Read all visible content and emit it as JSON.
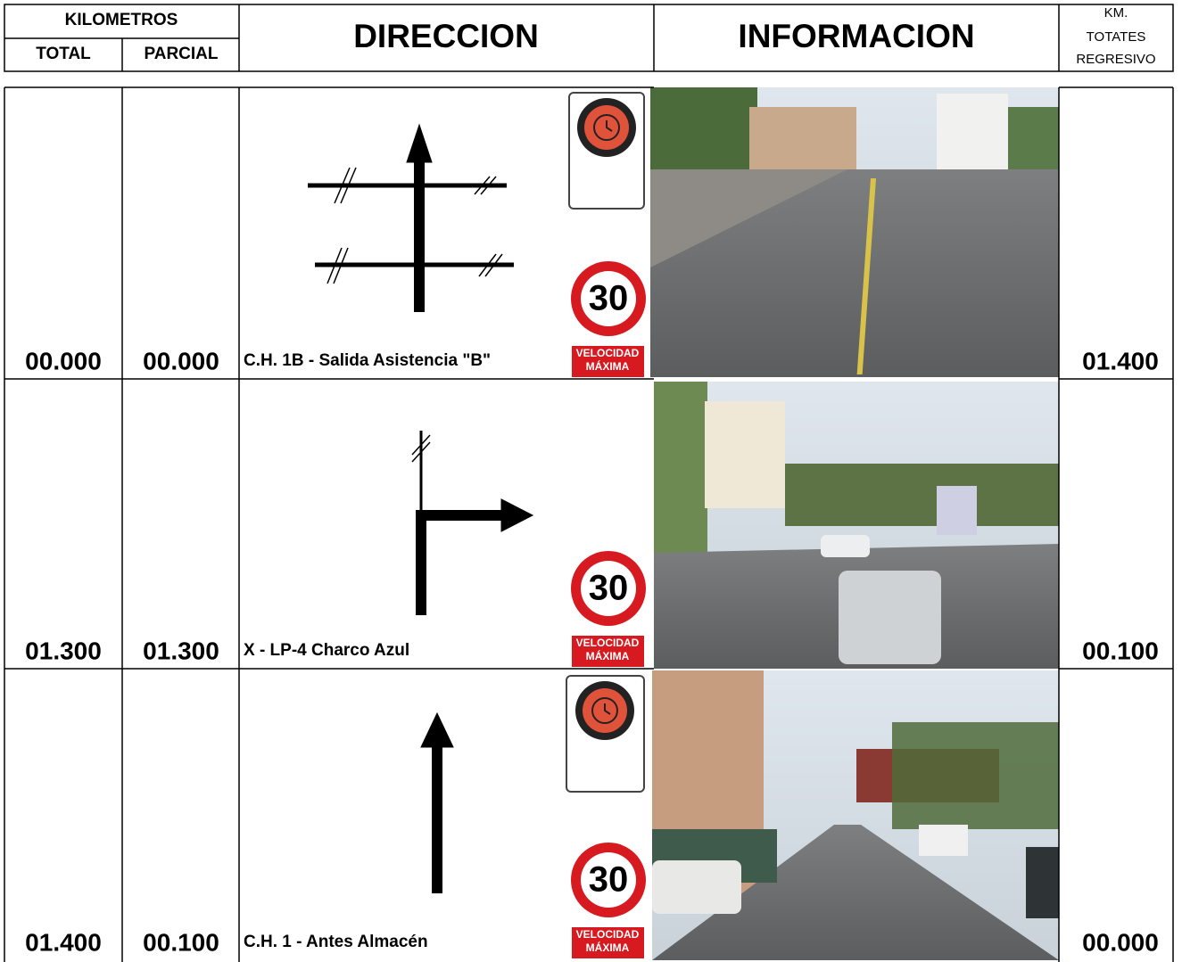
{
  "header": {
    "kilometros": "KILOMETROS",
    "total": "TOTAL",
    "parcial": "PARCIAL",
    "direccion": "DIRECCION",
    "informacion": "INFORMACION",
    "km_regresivo": [
      "KM.",
      "TOTATES",
      "REGRESIVO"
    ]
  },
  "rows": [
    {
      "total": "00.000",
      "parcial": "00.000",
      "description": "C.H. 1B - Salida Asistencia \"B\"",
      "km_regresivo": "01.400",
      "speed_limit": "30",
      "sign_line1": "VELOCIDAD",
      "sign_line2": "MÁXIMA"
    },
    {
      "total": "01.300",
      "parcial": "01.300",
      "description": "X - LP-4 Charco Azul",
      "km_regresivo": "00.100",
      "speed_limit": "30",
      "sign_line1": "VELOCIDAD",
      "sign_line2": "MÁXIMA"
    },
    {
      "total": "01.400",
      "parcial": "00.100",
      "description": "C.H. 1 - Antes Almacén",
      "km_regresivo": "00.000",
      "speed_limit": "30",
      "sign_line1": "VELOCIDAD",
      "sign_line2": "MÁXIMA"
    }
  ]
}
